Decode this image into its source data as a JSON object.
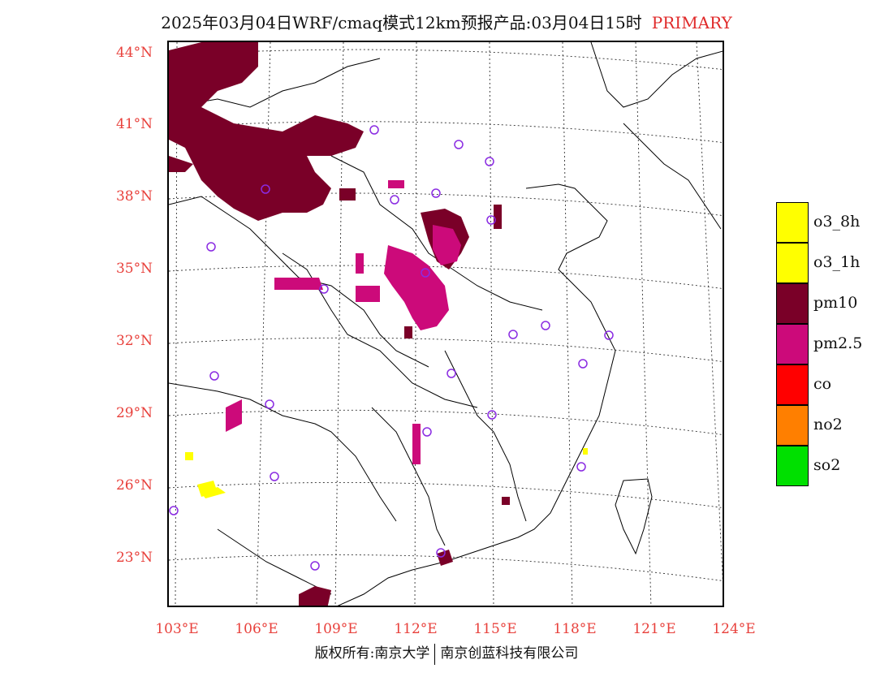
{
  "title": {
    "main": "2025年03月04日WRF/cmaq模式12km预报产品:03月04日15时",
    "tag": "PRIMARY"
  },
  "map": {
    "lat_labels": [
      "44°N",
      "41°N",
      "38°N",
      "35°N",
      "32°N",
      "29°N",
      "26°N",
      "23°N"
    ],
    "lon_labels": [
      "103°E",
      "106°E",
      "109°E",
      "112°E",
      "115°E",
      "118°E",
      "121°E",
      "124°E"
    ]
  },
  "legend": {
    "items": [
      {
        "label": "o3_8h",
        "color": "#ffff00"
      },
      {
        "label": "o3_1h",
        "color": "#ffff00"
      },
      {
        "label": "pm10",
        "color": "#7a0028"
      },
      {
        "label": "pm2.5",
        "color": "#cc0a7a"
      },
      {
        "label": "co",
        "color": "#ff0000"
      },
      {
        "label": "no2",
        "color": "#ff7f00"
      },
      {
        "label": "so2",
        "color": "#00e000"
      }
    ]
  },
  "footer": {
    "left": "版权所有:南京大学",
    "right": "南京创蓝科技有限公司"
  },
  "colors": {
    "pm10": "#7a0028",
    "pm25": "#cc0a7a",
    "o3": "#ffff00",
    "station": "#8a2be2",
    "axis_label": "#e8413c"
  }
}
